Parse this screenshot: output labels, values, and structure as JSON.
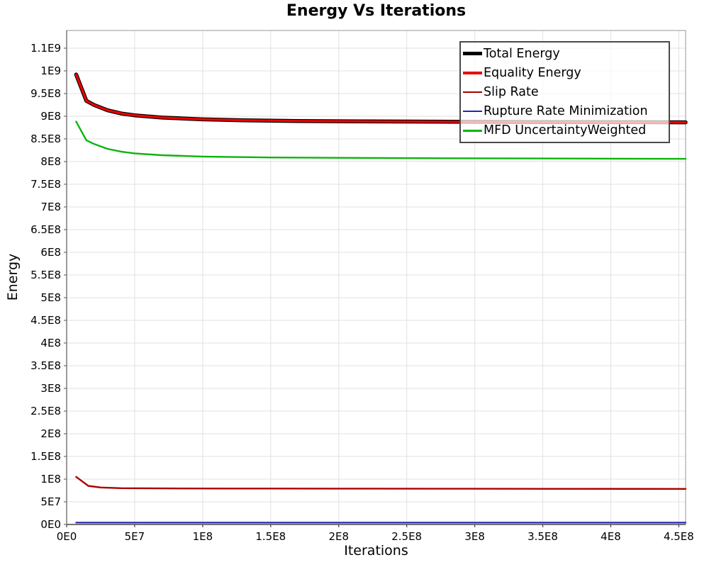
{
  "chart_data": {
    "type": "line",
    "title": "Energy Vs Iterations",
    "xlabel": "Iterations",
    "ylabel": "Energy",
    "xlim": [
      0,
      455000000
    ],
    "ylim": [
      0,
      1089000000
    ],
    "grid": true,
    "grid_color": "#e2e2e2",
    "plot_border_color": "#a8a8a8",
    "axis_line_color": "#4a4a4a",
    "legend_position": "top-right-inside",
    "x_ticks": {
      "values": [
        0,
        50000000,
        100000000,
        150000000,
        200000000,
        250000000,
        300000000,
        350000000,
        400000000,
        450000000
      ],
      "labels": [
        "0E0",
        "5E7",
        "1E8",
        "1.5E8",
        "2E8",
        "2.5E8",
        "3E8",
        "3.5E8",
        "4E8",
        "4.5E8"
      ]
    },
    "y_ticks": {
      "values": [
        0,
        50000000,
        100000000,
        150000000,
        200000000,
        250000000,
        300000000,
        350000000,
        400000000,
        450000000,
        500000000,
        550000000,
        600000000,
        650000000,
        700000000,
        750000000,
        800000000,
        850000000,
        900000000,
        950000000,
        1000000000,
        1050000000
      ],
      "labels": [
        "0E0",
        "5E7",
        "1E8",
        "1.5E8",
        "2E8",
        "2.5E8",
        "3E8",
        "3.5E8",
        "4E8",
        "4.5E8",
        "5E8",
        "5.5E8",
        "6E8",
        "6.5E8",
        "7E8",
        "7.5E8",
        "8E8",
        "8.5E8",
        "9E8",
        "9.5E8",
        "1E9",
        "1.1E9"
      ]
    },
    "series": [
      {
        "name": "Total Energy",
        "color": "#000000",
        "stroke_width": 5.5,
        "legend_swatch_height": 5,
        "points": [
          [
            7000000,
            992000000
          ],
          [
            14500000,
            934000000
          ],
          [
            20000000,
            925000000
          ],
          [
            30000000,
            913000000
          ],
          [
            40000000,
            906000000
          ],
          [
            50000000,
            902000000
          ],
          [
            70000000,
            897000000
          ],
          [
            100000000,
            893000000
          ],
          [
            130000000,
            891000000
          ],
          [
            170000000,
            889500000
          ],
          [
            220000000,
            888500000
          ],
          [
            280000000,
            887800000
          ],
          [
            350000000,
            887200000
          ],
          [
            420000000,
            886800000
          ],
          [
            455000000,
            886500000
          ]
        ]
      },
      {
        "name": "Equality Energy",
        "color": "#ee0000",
        "stroke_width": 3.2,
        "legend_swatch_height": 4,
        "points": [
          [
            7000000,
            992000000
          ],
          [
            14500000,
            934000000
          ],
          [
            20000000,
            925000000
          ],
          [
            30000000,
            913000000
          ],
          [
            40000000,
            906000000
          ],
          [
            50000000,
            902000000
          ],
          [
            70000000,
            897000000
          ],
          [
            100000000,
            893000000
          ],
          [
            130000000,
            891000000
          ],
          [
            170000000,
            889500000
          ],
          [
            220000000,
            888500000
          ],
          [
            280000000,
            887800000
          ],
          [
            350000000,
            887200000
          ],
          [
            420000000,
            886800000
          ],
          [
            455000000,
            886500000
          ]
        ]
      },
      {
        "name": "Slip Rate",
        "color": "#aa0000",
        "stroke_width": 2.4,
        "legend_swatch_height": 2.5,
        "points": [
          [
            7000000,
            105000000
          ],
          [
            16000000,
            85000000
          ],
          [
            25000000,
            81500000
          ],
          [
            40000000,
            80000000
          ],
          [
            70000000,
            79500000
          ],
          [
            120000000,
            79200000
          ],
          [
            200000000,
            79000000
          ],
          [
            300000000,
            78800000
          ],
          [
            455000000,
            78500000
          ]
        ]
      },
      {
        "name": "Rupture Rate Minimization",
        "color": "#2525b5",
        "stroke_width": 2.2,
        "legend_swatch_height": 2.5,
        "points": [
          [
            7000000,
            4000000
          ],
          [
            100000000,
            4000000
          ],
          [
            250000000,
            4000000
          ],
          [
            455000000,
            4000000
          ]
        ]
      },
      {
        "name": "MFD UncertaintyWeighted",
        "color": "#0cb40c",
        "stroke_width": 2.4,
        "legend_swatch_height": 2.5,
        "points": [
          [
            7000000,
            888000000
          ],
          [
            14500000,
            847000000
          ],
          [
            20000000,
            839000000
          ],
          [
            30000000,
            828000000
          ],
          [
            40000000,
            822000000
          ],
          [
            50000000,
            818000000
          ],
          [
            70000000,
            814000000
          ],
          [
            100000000,
            811000000
          ],
          [
            150000000,
            809000000
          ],
          [
            200000000,
            808200000
          ],
          [
            280000000,
            807300000
          ],
          [
            350000000,
            806800000
          ],
          [
            455000000,
            806000000
          ]
        ]
      }
    ]
  }
}
